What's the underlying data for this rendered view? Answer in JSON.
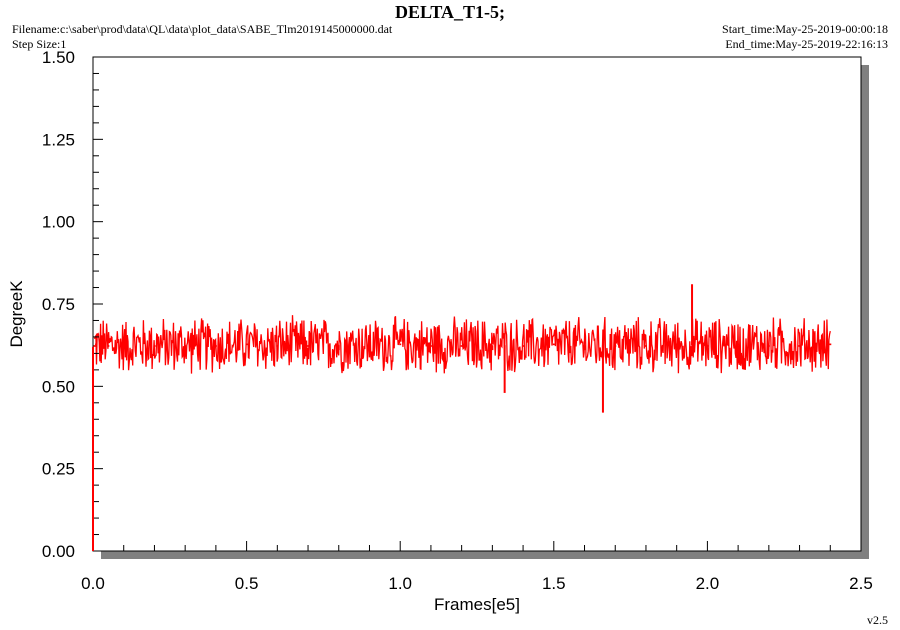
{
  "header": {
    "title": "DELTA_T1-5;",
    "filename": "Filename:c:\\saber\\prod\\data\\QL\\data\\plot_data\\SABE_Tlm2019145000000.dat",
    "step_size": "Step Size:1",
    "start_time": "Start_time:May-25-2019-00:00:18",
    "end_time": "End_time:May-25-2019-22:16:13"
  },
  "footer": {
    "version": "v2.5"
  },
  "chart_data": {
    "type": "line",
    "title": "DELTA_T1-5;",
    "xlabel": "Frames[e5]",
    "ylabel": "DegreeK",
    "xlim": [
      0,
      2.5
    ],
    "ylim": [
      0,
      1.5
    ],
    "x_ticks": [
      "0.0",
      "0.5",
      "1.0",
      "1.5",
      "2.0",
      "2.5"
    ],
    "y_ticks": [
      "0.00",
      "0.25",
      "0.50",
      "0.75",
      "1.00",
      "1.25",
      "1.50"
    ],
    "grid": false,
    "colors": {
      "series": "#ff0000",
      "frame_shadow": "#808080"
    },
    "series": [
      {
        "x": [
          0,
          0.005,
          0.01,
          0.05,
          0.1,
          0.2,
          0.3,
          0.4,
          0.5,
          0.6,
          0.7,
          0.8,
          0.9,
          1.0,
          1.1,
          1.2,
          1.3,
          1.34,
          1.4,
          1.5,
          1.6,
          1.66,
          1.7,
          1.8,
          1.9,
          1.95,
          2.0,
          2.1,
          2.2,
          2.3,
          2.38,
          2.4
        ],
        "y": [
          0.0,
          0.62,
          0.63,
          0.62,
          0.63,
          0.62,
          0.61,
          0.62,
          0.63,
          0.62,
          0.62,
          0.61,
          0.62,
          0.63,
          0.62,
          0.62,
          0.61,
          0.48,
          0.62,
          0.63,
          0.61,
          0.42,
          0.62,
          0.62,
          0.63,
          0.81,
          0.62,
          0.63,
          0.62,
          0.62,
          0.6,
          0.63
        ],
        "band_low": 0.53,
        "band_high": 0.72
      }
    ]
  }
}
